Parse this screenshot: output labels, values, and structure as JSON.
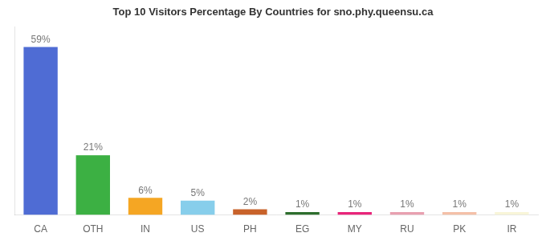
{
  "chart_data": {
    "type": "bar",
    "title": "Top 10 Visitors Percentage By Countries for sno.phy.queensu.ca",
    "categories": [
      "CA",
      "OTH",
      "IN",
      "US",
      "PH",
      "EG",
      "MY",
      "RU",
      "PK",
      "IR"
    ],
    "values": [
      59,
      21,
      6,
      5,
      2,
      1,
      1,
      1,
      1,
      1
    ],
    "value_labels": [
      "59%",
      "21%",
      "6%",
      "5%",
      "2%",
      "1%",
      "1%",
      "1%",
      "1%",
      "1%"
    ],
    "colors": [
      "#4f6cd4",
      "#3cb043",
      "#f5a623",
      "#87ceeb",
      "#c8622a",
      "#2d6e2d",
      "#e8257a",
      "#e8a0b0",
      "#f4c0a8",
      "#f8f5d8"
    ],
    "ylim": [
      0,
      66
    ],
    "grid": false,
    "data_labels": true,
    "tick_labels": "x"
  }
}
